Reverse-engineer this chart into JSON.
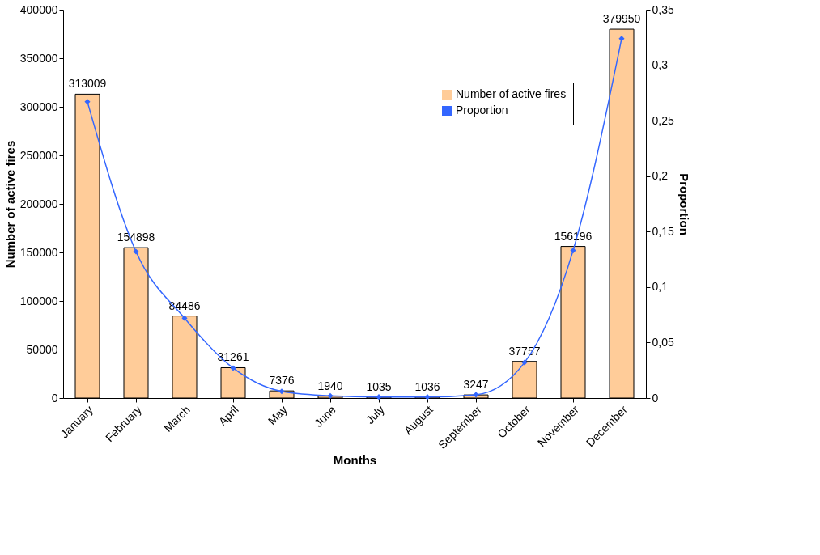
{
  "chart_data": {
    "type": "bar",
    "xlabel": "Months",
    "ylabel": "Number of active fires",
    "y2label": "Proportion",
    "categories": [
      "January",
      "February",
      "March",
      "April",
      "May",
      "June",
      "July",
      "August",
      "September",
      "October",
      "November",
      "December"
    ],
    "series": [
      {
        "name": "Number of active fires",
        "color": "#ffcc99",
        "values": [
          313009,
          154898,
          84486,
          31261,
          7376,
          1940,
          1035,
          1036,
          3247,
          37757,
          156196,
          379950
        ],
        "value_labels": [
          "313009",
          "154898",
          "84486",
          "31261",
          "7376",
          "1940",
          "1035",
          "1036",
          "3247",
          "37757",
          "156196",
          "379950"
        ]
      },
      {
        "name": "Proportion",
        "type": "line",
        "axis": "y2",
        "color": "#3366ff",
        "marker": "diamond",
        "values": [
          0.267,
          0.132,
          0.072,
          0.027,
          0.006,
          0.002,
          0.001,
          0.001,
          0.003,
          0.032,
          0.133,
          0.324
        ]
      }
    ],
    "ylim": [
      0,
      400000
    ],
    "yticks": [
      0,
      50000,
      100000,
      150000,
      200000,
      250000,
      300000,
      350000,
      400000
    ],
    "y2lim": [
      0,
      0.35
    ],
    "y2ticks": [
      0,
      {
        "value": 0.05,
        "label": "0,05"
      },
      {
        "value": 0.1,
        "label": "0,1"
      },
      {
        "value": 0.15,
        "label": "0,15"
      },
      {
        "value": 0.2,
        "label": "0,2"
      },
      {
        "value": 0.25,
        "label": "0,25"
      },
      {
        "value": 0.3,
        "label": "0,3"
      },
      {
        "value": 0.35,
        "label": "0,35"
      }
    ],
    "legend": "top right",
    "grid": false
  }
}
